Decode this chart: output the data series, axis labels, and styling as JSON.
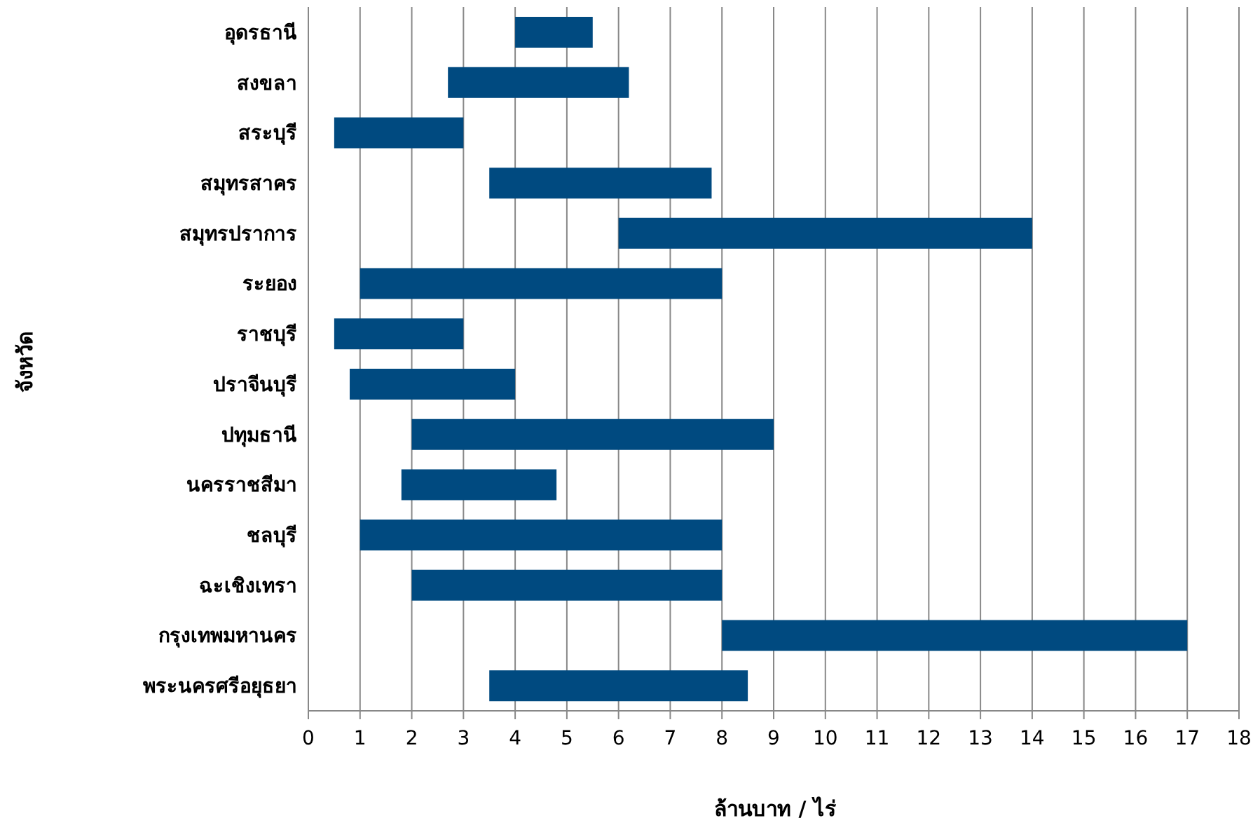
{
  "chart_data": {
    "type": "bar",
    "orientation": "horizontal",
    "xlabel": "ล้านบาท / ไร่",
    "ylabel": "จังหวัด",
    "categories": [
      "อุดรธานี",
      "สงขลา",
      "สระบุรี",
      "สมุทรสาคร",
      "สมุทรปราการ",
      "ระยอง",
      "ราชบุรี",
      "ปราจีนบุรี",
      "ปทุมธานี",
      "นครราชสีมา",
      "ชลบุรี",
      "ฉะเชิงเทรา",
      "กรุงเทพมหานคร",
      "พระนครศรีอยุธยา"
    ],
    "base": [
      4,
      2.7,
      0.5,
      3.5,
      6,
      1,
      0.5,
      0.8,
      2,
      1.8,
      1,
      2,
      8,
      3.5
    ],
    "values": [
      1.5,
      3.5,
      2.5,
      4.3,
      8,
      7,
      2.5,
      3.2,
      7,
      3,
      7,
      6,
      9,
      5
    ],
    "color": "#004a80",
    "xlim": [
      0,
      18
    ],
    "xticks": [
      0,
      1,
      2,
      3,
      4,
      5,
      6,
      7,
      8,
      9,
      10,
      11,
      12,
      13,
      14,
      15,
      16,
      17,
      18
    ],
    "grid": "x"
  }
}
